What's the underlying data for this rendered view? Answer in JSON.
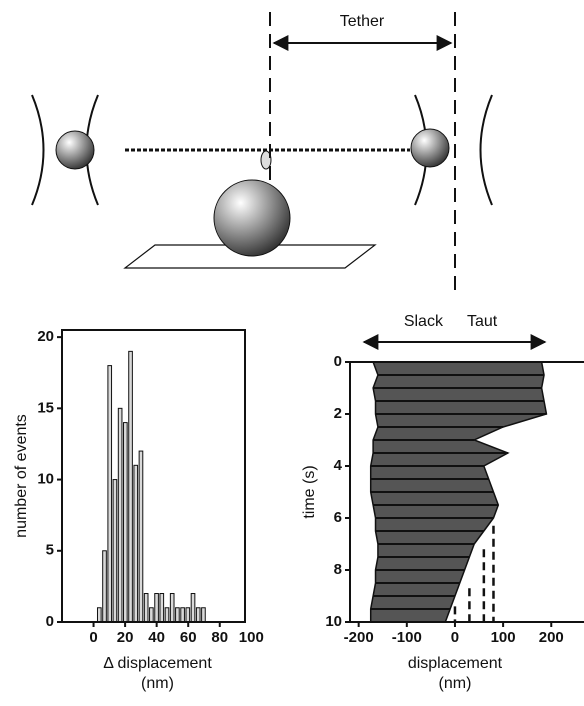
{
  "diagram": {
    "label": "Tether"
  },
  "chart_data": [
    {
      "type": "histogram",
      "ylabel": "number of events",
      "xlabel_lines": [
        "Δ displacement",
        "(nm)"
      ],
      "bins": [
        2,
        5.3,
        8.6,
        11.9,
        15.2,
        18.5,
        21.8,
        25.1,
        28.4,
        31.7,
        35,
        38.3,
        41.6,
        44.9,
        48.2,
        51.5,
        54.8,
        58.1,
        61.4,
        64.7,
        68,
        71.3
      ],
      "values": [
        1,
        5,
        18,
        10,
        15,
        14,
        19,
        11,
        12,
        2,
        1,
        2,
        2,
        1,
        2,
        1,
        1,
        1,
        2,
        1,
        1
      ],
      "color": "#d9d9d9",
      "xlim": [
        -20,
        96
      ],
      "ylim": [
        0,
        20.5
      ],
      "xticks": [
        0,
        20,
        40,
        60,
        80,
        100
      ],
      "yticks": [
        0,
        5,
        10,
        15,
        20
      ]
    },
    {
      "type": "trace",
      "ylabel": "time (s)",
      "xlabel_lines": [
        "displacement",
        "(nm)"
      ],
      "side_labels": [
        "Slack",
        "Taut"
      ],
      "t": [
        0,
        0.5,
        1,
        1.5,
        2,
        2.5,
        3,
        3.5,
        4,
        4.5,
        5,
        5.5,
        6,
        6.5,
        7,
        7.5,
        8,
        8.5,
        9,
        9.5,
        10
      ],
      "max": [
        180,
        185,
        180,
        185,
        190,
        100,
        40,
        110,
        60,
        70,
        80,
        90,
        80,
        60,
        40,
        30,
        20,
        10,
        0,
        -10,
        -20
      ],
      "min": [
        -170,
        -160,
        -170,
        -165,
        -165,
        -160,
        -170,
        -170,
        -175,
        -175,
        -175,
        -170,
        -165,
        -165,
        -160,
        -160,
        -165,
        -165,
        -170,
        -175,
        -175
      ],
      "step_lines": {
        "x": [
          0,
          30,
          60,
          80
        ],
        "t": [
          9.4,
          8.7,
          7.2,
          6.3
        ]
      },
      "color": "#111111",
      "xlim": [
        -218,
        268
      ],
      "ylim": [
        0,
        10
      ],
      "xticks": [
        -200,
        -100,
        0,
        100,
        200
      ],
      "yticks": [
        0,
        2,
        4,
        6,
        8,
        10
      ]
    }
  ]
}
